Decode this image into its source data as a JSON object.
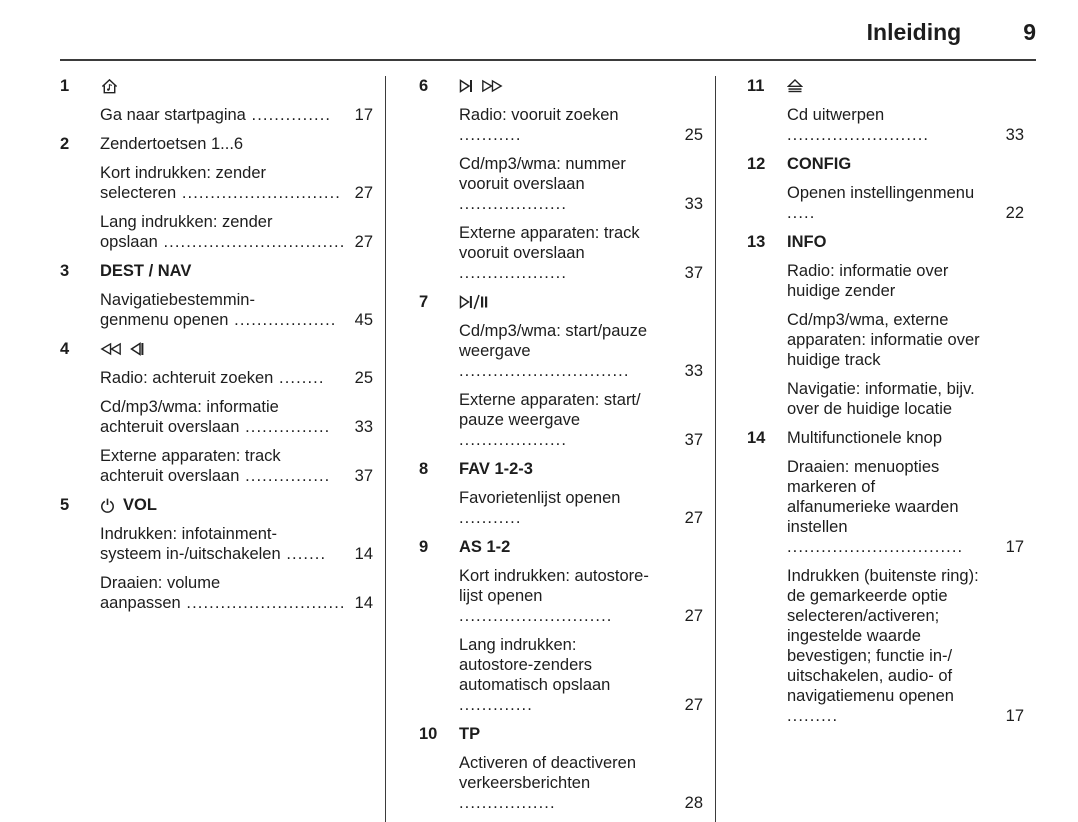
{
  "page": {
    "title": "Inleiding",
    "page_number": "9"
  },
  "colors": {
    "text": "#1d1d1d",
    "rule": "#3b3b3b",
    "background": "#ffffff"
  },
  "icons_used": [
    "home-icon",
    "fast-rewind-icon",
    "skip-back-icon",
    "power-icon",
    "skip-forward-icon",
    "fast-forward-icon",
    "play-pause-icon",
    "eject-icon"
  ],
  "columns": [
    {
      "items": [
        {
          "num": "1",
          "icons": [
            "home-icon"
          ],
          "label": null,
          "label_bold": false,
          "entries": [
            {
              "text": "Ga naar startpagina",
              "dots": "..............",
              "page": "17"
            }
          ]
        },
        {
          "num": "2",
          "icons": [],
          "label": "Zendertoetsen 1...6",
          "label_bold": false,
          "entries": [
            {
              "text": "Kort indrukken: zender\nselecteren",
              "dots": "............................",
              "page": "27"
            },
            {
              "text": "Lang indrukken: zender\nopslaan",
              "dots": "................................",
              "page": "27"
            }
          ]
        },
        {
          "num": "3",
          "icons": [],
          "label": "DEST / NAV",
          "label_bold": true,
          "entries": [
            {
              "text": "Navigatiebestemmin-\ngenmenu openen",
              "dots": "..................",
              "page": "45"
            }
          ]
        },
        {
          "num": "4",
          "icons": [
            "fast-rewind-icon",
            "skip-back-icon"
          ],
          "label": null,
          "label_bold": false,
          "entries": [
            {
              "text": "Radio: achteruit zoeken",
              "dots": "........",
              "page": "25"
            },
            {
              "text": "Cd/mp3/wma: informatie\nachteruit overslaan",
              "dots": "...............",
              "page": "33"
            },
            {
              "text": "Externe apparaten: track\nachteruit overslaan",
              "dots": "...............",
              "page": "37"
            }
          ]
        },
        {
          "num": "5",
          "icons": [
            "power-icon"
          ],
          "label": "VOL",
          "label_bold": true,
          "entries": [
            {
              "text": "Indrukken: infotainment-\nsysteem in-/uitschakelen",
              "dots": ".......",
              "page": "14"
            },
            {
              "text": "Draaien: volume\naanpassen",
              "dots": "............................",
              "page": "14"
            }
          ]
        }
      ]
    },
    {
      "items": [
        {
          "num": "6",
          "icons": [
            "skip-forward-icon",
            "fast-forward-icon"
          ],
          "label": null,
          "label_bold": false,
          "entries": [
            {
              "text": "Radio: vooruit zoeken",
              "dots": "...........",
              "page": "25"
            },
            {
              "text": "Cd/mp3/wma: nummer\nvooruit overslaan",
              "dots": "...................",
              "page": "33"
            },
            {
              "text": "Externe apparaten: track\nvooruit overslaan",
              "dots": "...................",
              "page": "37"
            }
          ]
        },
        {
          "num": "7",
          "icons": [
            "play-pause-icon"
          ],
          "label": null,
          "label_bold": false,
          "entries": [
            {
              "text": "Cd/mp3/wma: start/pauze\nweergave",
              "dots": "..............................",
              "page": "33"
            },
            {
              "text": "Externe apparaten: start/\npauze weergave",
              "dots": "...................",
              "page": "37"
            }
          ]
        },
        {
          "num": "8",
          "icons": [],
          "label": "FAV 1-2-3",
          "label_bold": true,
          "entries": [
            {
              "text": "Favorietenlijst openen",
              "dots": "...........",
              "page": "27"
            }
          ]
        },
        {
          "num": "9",
          "icons": [],
          "label": "AS 1-2",
          "label_bold": true,
          "entries": [
            {
              "text": "Kort indrukken: autostore-\nlijst openen",
              "dots": "...........................",
              "page": "27"
            },
            {
              "text": "Lang indrukken:\nautostore-zenders\nautomatisch opslaan",
              "dots": ".............",
              "page": "27"
            }
          ]
        },
        {
          "num": "10",
          "icons": [],
          "label": "TP",
          "label_bold": true,
          "entries": [
            {
              "text": "Activeren of deactiveren\nverkeersberichten",
              "dots": ".................",
              "page": "28"
            }
          ]
        }
      ]
    },
    {
      "items": [
        {
          "num": "11",
          "icons": [
            "eject-icon"
          ],
          "label": null,
          "label_bold": false,
          "entries": [
            {
              "text": "Cd uitwerpen",
              "dots": ".........................",
              "page": "33"
            }
          ]
        },
        {
          "num": "12",
          "icons": [],
          "label": "CONFIG",
          "label_bold": true,
          "entries": [
            {
              "text": "Openen instellingenmenu",
              "dots": ".....",
              "page": "22"
            }
          ]
        },
        {
          "num": "13",
          "icons": [],
          "label": "INFO",
          "label_bold": true,
          "entries": [
            {
              "text": "Radio: informatie over\nhuidige zender",
              "dots": null,
              "page": null
            },
            {
              "text": "Cd/mp3/wma, externe\napparaten: informatie over\nhuidige track",
              "dots": null,
              "page": null
            },
            {
              "text": "Navigatie: informatie, bijv.\nover de huidige locatie",
              "dots": null,
              "page": null
            }
          ]
        },
        {
          "num": "14",
          "icons": [],
          "label": "Multifunctionele knop",
          "label_bold": false,
          "entries": [
            {
              "text": "Draaien: menuopties\nmarkeren of\nalfanumerieke waarden\ninstellen ",
              "dots": "...............................",
              "page": "17"
            },
            {
              "text": "Indrukken (buitenste ring):\nde gemarkeerde optie\nselecteren/activeren;\ningestelde waarde\nbevestigen; functie in-/\nuitschakelen, audio- of\nnavigatiemenu openen",
              "dots": ".........",
              "page": "17"
            }
          ]
        }
      ]
    }
  ]
}
